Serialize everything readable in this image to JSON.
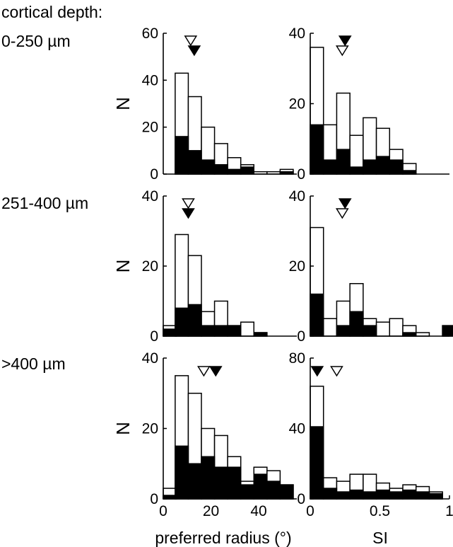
{
  "figure": {
    "header": "cortical depth:",
    "row_labels": [
      "0-250 µm",
      "251-400 µm",
      ">400 µm"
    ],
    "ylabel": "N",
    "xlabel_left": "preferred radius (°)",
    "xlabel_right": "SI"
  },
  "chart_data": [
    {
      "type": "bar",
      "row": "0-250 µm",
      "column": "preferred radius",
      "xlim": [
        0,
        56
      ],
      "ylim": [
        0,
        60
      ],
      "bin_width": 5.5,
      "bin_starts": [
        5,
        10.5,
        16,
        21.5,
        27,
        32.5,
        38,
        43.5,
        49
      ],
      "series": [
        {
          "fill": "open",
          "values": [
            43,
            33,
            20,
            13,
            7,
            4,
            1,
            1,
            2
          ]
        },
        {
          "fill": "filled",
          "values": [
            16,
            10,
            6,
            4,
            2,
            3,
            0,
            0,
            1
          ]
        }
      ],
      "markers": [
        {
          "fill": "open",
          "x": 11.5
        },
        {
          "fill": "filled",
          "x": 13
        }
      ],
      "yticks": [
        0,
        20,
        40,
        60
      ],
      "xticks": []
    },
    {
      "type": "bar",
      "row": "0-250 µm",
      "column": "SI",
      "xlim": [
        0,
        1
      ],
      "ylim": [
        0,
        40
      ],
      "bin_width": 0.095,
      "bin_starts": [
        0,
        0.095,
        0.19,
        0.285,
        0.38,
        0.475,
        0.57,
        0.665,
        0.76
      ],
      "series": [
        {
          "fill": "open",
          "values": [
            36,
            14,
            23,
            11,
            16,
            13,
            7,
            3,
            0
          ]
        },
        {
          "fill": "filled",
          "values": [
            14,
            4,
            7,
            2,
            4,
            5,
            4,
            1,
            0
          ]
        }
      ],
      "markers": [
        {
          "fill": "filled",
          "x": 0.25
        },
        {
          "fill": "open",
          "x": 0.23
        }
      ],
      "yticks": [
        0,
        20,
        40
      ],
      "xticks": []
    },
    {
      "type": "bar",
      "row": "251-400 µm",
      "column": "preferred radius",
      "xlim": [
        0,
        56
      ],
      "ylim": [
        0,
        40
      ],
      "bin_width": 5.5,
      "bin_starts": [
        0,
        5,
        10.5,
        16,
        21.5,
        27,
        32.5,
        38
      ],
      "series": [
        {
          "fill": "open",
          "values": [
            3,
            29,
            23,
            7,
            10,
            3,
            4,
            1
          ]
        },
        {
          "fill": "filled",
          "values": [
            2,
            8,
            9,
            3,
            3,
            3,
            0,
            1
          ]
        }
      ],
      "markers": [
        {
          "fill": "open",
          "x": 10.5
        },
        {
          "fill": "filled",
          "x": 10.5
        }
      ],
      "yticks": [
        0,
        20,
        40
      ],
      "xticks": []
    },
    {
      "type": "bar",
      "row": "251-400 µm",
      "column": "SI",
      "xlim": [
        0,
        1
      ],
      "ylim": [
        0,
        40
      ],
      "bin_width": 0.095,
      "bin_starts": [
        0,
        0.095,
        0.19,
        0.285,
        0.38,
        0.475,
        0.57,
        0.665,
        0.76,
        0.855,
        0.95
      ],
      "series": [
        {
          "fill": "open",
          "values": [
            31,
            5,
            10,
            15,
            5,
            4,
            5,
            3,
            1,
            0,
            3
          ]
        },
        {
          "fill": "filled",
          "values": [
            12,
            0,
            3,
            7,
            3,
            0,
            0,
            1,
            0,
            0,
            3
          ]
        }
      ],
      "markers": [
        {
          "fill": "filled",
          "x": 0.25
        },
        {
          "fill": "open",
          "x": 0.23
        }
      ],
      "yticks": [
        0,
        20,
        40
      ],
      "xticks": []
    },
    {
      "type": "bar",
      "row": ">400 µm",
      "column": "preferred radius",
      "xlim": [
        0,
        56
      ],
      "ylim": [
        0,
        40
      ],
      "bin_width": 5.5,
      "bin_starts": [
        0,
        5,
        10.5,
        16,
        21.5,
        27,
        32.5,
        38,
        43.5,
        49
      ],
      "series": [
        {
          "fill": "open",
          "values": [
            3,
            35,
            30,
            20,
            18,
            12,
            5,
            9,
            8,
            4
          ]
        },
        {
          "fill": "filled",
          "values": [
            1,
            15,
            10,
            12,
            9,
            9,
            4,
            7,
            5,
            4
          ]
        }
      ],
      "markers": [
        {
          "fill": "open",
          "x": 17
        },
        {
          "fill": "filled",
          "x": 22
        }
      ],
      "yticks": [
        0,
        20,
        40
      ],
      "xticks": [
        0,
        20,
        40
      ]
    },
    {
      "type": "bar",
      "row": ">400 µm",
      "column": "SI",
      "xlim": [
        0,
        1
      ],
      "ylim": [
        0,
        80
      ],
      "bin_width": 0.095,
      "bin_starts": [
        0,
        0.095,
        0.19,
        0.285,
        0.38,
        0.475,
        0.57,
        0.665,
        0.76,
        0.855
      ],
      "series": [
        {
          "fill": "open",
          "values": [
            64,
            12,
            10,
            14,
            14,
            9,
            6,
            8,
            7,
            4
          ]
        },
        {
          "fill": "filled",
          "values": [
            41,
            6,
            4,
            5,
            4,
            5,
            4,
            5,
            4,
            3
          ]
        }
      ],
      "markers": [
        {
          "fill": "filled",
          "x": 0.05
        },
        {
          "fill": "open",
          "x": 0.19
        }
      ],
      "yticks": [
        0,
        40,
        80
      ],
      "xticks": [
        "0",
        "0.5",
        "1"
      ],
      "xtick_values": [
        0,
        0.5,
        1
      ]
    }
  ]
}
